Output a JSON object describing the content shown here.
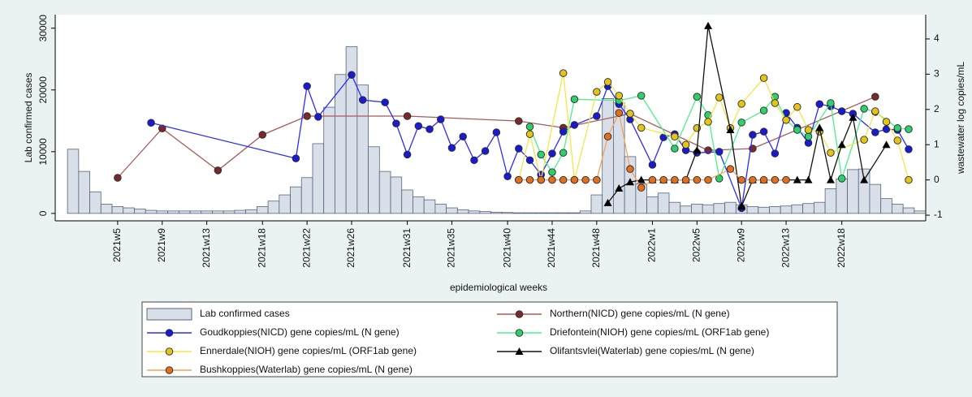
{
  "chart_data": {
    "type": "combo",
    "x_label": "epidemiological weeks",
    "y_label": "Lab confirmed cases",
    "y2_label": "wastewater log copies/mL",
    "x": [
      "2021w1",
      "2021w2",
      "2021w3",
      "2021w4",
      "2021w5",
      "2021w6",
      "2021w7",
      "2021w8",
      "2021w9",
      "2021w10",
      "2021w11",
      "2021w12",
      "2021w13",
      "2021w14",
      "2021w15",
      "2021w16",
      "2021w17",
      "2021w18",
      "2021w19",
      "2021w20",
      "2021w21",
      "2021w22",
      "2021w23",
      "2021w24",
      "2021w25",
      "2021w26",
      "2021w27",
      "2021w28",
      "2021w29",
      "2021w30",
      "2021w31",
      "2021w32",
      "2021w33",
      "2021w34",
      "2021w35",
      "2021w36",
      "2021w37",
      "2021w38",
      "2021w39",
      "2021w40",
      "2021w41",
      "2021w42",
      "2021w43",
      "2021w44",
      "2021w45",
      "2021w46",
      "2021w47",
      "2021w48",
      "2021w49",
      "2021w50",
      "2021w51",
      "2021w52",
      "2022w1",
      "2022w2",
      "2022w3",
      "2022w4",
      "2022w5",
      "2022w6",
      "2022w7",
      "2022w8",
      "2022w9",
      "2022w10",
      "2022w11",
      "2022w12",
      "2022w13",
      "2022w14",
      "2022w15",
      "2022w16",
      "2022w17",
      "2022w18",
      "2022w19",
      "2022w20",
      "2022w21",
      "2022w22",
      "2022w23",
      "2022w24",
      "2022w25"
    ],
    "xticks": [
      "2021w5",
      "2021w9",
      "2021w13",
      "2021w18",
      "2021w22",
      "2021w26",
      "2021w31",
      "2021w35",
      "2021w40",
      "2021w44",
      "2021w48",
      "2022w1",
      "2022w5",
      "2022w9",
      "2022w13",
      "2022w18"
    ],
    "ylim": [
      -1200,
      32200
    ],
    "yticks": [
      0,
      10000,
      20000,
      30000
    ],
    "y2lim": [
      -1.16,
      4.69
    ],
    "y2ticks": [
      -1,
      0,
      1,
      2,
      3,
      4
    ],
    "series": [
      {
        "name": "Lab confirmed cases",
        "type": "bar",
        "color": "#d9dfe9",
        "edge_color": "#56657d",
        "values": [
          10400,
          6800,
          3500,
          1500,
          1100,
          900,
          700,
          500,
          400,
          400,
          400,
          400,
          400,
          400,
          400,
          500,
          600,
          1100,
          2000,
          3000,
          4300,
          5800,
          11300,
          17200,
          22500,
          27000,
          20800,
          10800,
          6800,
          5900,
          3800,
          2700,
          2200,
          1500,
          900,
          600,
          400,
          300,
          200,
          150,
          100,
          100,
          100,
          100,
          100,
          100,
          400,
          3000,
          18600,
          17900,
          9200,
          4800,
          2700,
          3300,
          1800,
          1200,
          1500,
          1400,
          1600,
          1800,
          1400,
          1100,
          1000,
          1100,
          1200,
          1400,
          1600,
          1800,
          4000,
          5600,
          7100,
          7200,
          4700,
          2400,
          1500,
          900,
          400
        ]
      },
      {
        "name": "Northern(NICD) gene copies/mL (N gene)",
        "type": "line",
        "axis": "y2",
        "marker": "circle",
        "color": "#a85a5a",
        "marker_color": "#7b2a2a",
        "x": [
          "2021w5",
          "2021w9",
          "2021w14",
          "2021w18",
          "2021w22",
          "2021w31",
          "2021w41",
          "2021w45",
          "2021w51",
          "2022w6",
          "2022w10",
          "2022w21"
        ],
        "values": [
          0.06,
          1.46,
          0.27,
          1.28,
          1.81,
          1.81,
          1.67,
          1.48,
          1.88,
          0.84,
          0.89,
          2.36
        ]
      },
      {
        "name": "Goudkoppies(NICD) gene copies/mL (N gene)",
        "type": "line",
        "axis": "y2",
        "marker": "circle",
        "color": "#2b2bff",
        "marker_color": "#1a1ad0",
        "x": [
          "2021w8",
          "2021w21",
          "2021w22",
          "2021w23",
          "2021w26",
          "2021w27",
          "2021w29",
          "2021w30",
          "2021w31",
          "2021w32",
          "2021w33",
          "2021w34",
          "2021w35",
          "2021w36",
          "2021w37",
          "2021w38",
          "2021w39",
          "2021w40",
          "2021w41",
          "2021w42",
          "2021w43",
          "2021w44",
          "2021w45",
          "2021w46",
          "2021w48",
          "2021w49",
          "2021w50",
          "2021w51",
          "2022w1",
          "2022w2",
          "2022w3",
          "2022w4",
          "2022w5",
          "2022w7",
          "2022w9",
          "2022w10",
          "2022w11",
          "2022w12",
          "2022w13",
          "2022w14",
          "2022w15",
          "2022w16",
          "2022w17",
          "2022w18",
          "2022w19",
          "2022w21",
          "2022w22",
          "2022w23",
          "2022w24"
        ],
        "values": [
          1.62,
          0.61,
          2.66,
          1.79,
          2.98,
          2.27,
          2.2,
          1.6,
          0.72,
          1.53,
          1.44,
          1.72,
          0.91,
          1.23,
          0.56,
          0.82,
          1.35,
          0.1,
          0.89,
          0.56,
          0.15,
          0.75,
          1.37,
          1.56,
          1.81,
          2.66,
          2.15,
          1.72,
          0.43,
          1.21,
          1.3,
          0.84,
          0.77,
          0.8,
          -0.8,
          1.28,
          1.37,
          0.75,
          1.9,
          1.48,
          1.05,
          2.15,
          2.09,
          1.95,
          1.88,
          1.35,
          1.44,
          1.42,
          0.87
        ]
      },
      {
        "name": "Driefontein(NIOH) gene copies/mL (ORF1ab gene)",
        "type": "line",
        "axis": "y2",
        "marker": "circle",
        "color": "#4ef08a",
        "marker_color": "#2fcf6c",
        "x": [
          "2021w42",
          "2021w43",
          "2021w44",
          "2021w45",
          "2021w46",
          "2021w50",
          "2021w52",
          "2022w3",
          "2022w5",
          "2022w6",
          "2022w7",
          "2022w9",
          "2022w11",
          "2022w12",
          "2022w13",
          "2022w14",
          "2022w15",
          "2022w17",
          "2022w18",
          "2022w20",
          "2022w21",
          "2022w23",
          "2022w24"
        ],
        "values": [
          1.51,
          0.72,
          0.22,
          0.77,
          2.29,
          2.25,
          2.39,
          0.89,
          2.36,
          1.84,
          0.04,
          1.63,
          1.97,
          2.36,
          1.7,
          1.42,
          1.23,
          2.18,
          0.04,
          2.02,
          1.93,
          1.47,
          1.44
        ]
      },
      {
        "name": "Ennerdale(NIOH) gene copies/mL (ORF1ab gene)",
        "type": "line",
        "axis": "y2",
        "marker": "circle",
        "color": "#f3e64a",
        "marker_color": "#e2c41a",
        "x": [
          "2021w41",
          "2021w42",
          "2021w43",
          "2021w45",
          "2021w46",
          "2021w48",
          "2021w49",
          "2021w50",
          "2021w51",
          "2021w52",
          "2022w3",
          "2022w4",
          "2022w5",
          "2022w6",
          "2022w7",
          "2022w8",
          "2022w9",
          "2022w11",
          "2022w12",
          "2022w13",
          "2022w14",
          "2022w15",
          "2022w16",
          "2022w17",
          "2022w20",
          "2022w21",
          "2022w22",
          "2022w23",
          "2022w24"
        ],
        "values": [
          0,
          1.3,
          0,
          3.03,
          0,
          2.5,
          2.78,
          2.39,
          1.88,
          1.48,
          1.23,
          1,
          1.47,
          1.65,
          2.34,
          1.47,
          2.16,
          2.89,
          2.18,
          1.7,
          2.07,
          1.42,
          1.37,
          0.77,
          1.14,
          1.95,
          1.65,
          1.12,
          0
        ]
      },
      {
        "name": "Olifantsvlei(Waterlab) gene copies/mL (N gene)",
        "type": "line",
        "axis": "y2",
        "marker": "triangle",
        "color": "#111111",
        "marker_color": "#000000",
        "x": [
          "2021w49",
          "2021w50",
          "2021w51",
          "2021w52",
          "2022w1",
          "2022w2",
          "2022w3",
          "2022w4",
          "2022w5",
          "2022w6",
          "2022w8",
          "2022w9",
          "2022w10",
          "2022w11",
          "2022w14",
          "2022w15",
          "2022w16",
          "2022w17",
          "2022w18",
          "2022w19",
          "2022w20",
          "2022w22"
        ],
        "values": [
          -0.65,
          -0.24,
          -0.06,
          0,
          0,
          0,
          0,
          0,
          0.84,
          4.37,
          1.42,
          -0.75,
          0,
          0,
          0,
          0,
          1.48,
          0,
          1,
          1.77,
          0,
          1
        ]
      },
      {
        "name": "Bushkoppies(Waterlab) gene copies/mL (N gene)",
        "type": "line",
        "axis": "y2",
        "marker": "circle",
        "color": "#f5a25c",
        "marker_color": "#e26e1e",
        "x": [
          "2021w41",
          "2021w42",
          "2021w43",
          "2021w44",
          "2021w45",
          "2021w46",
          "2021w47",
          "2021w48",
          "2021w49",
          "2021w50",
          "2021w51",
          "2021w52",
          "2022w1",
          "2022w2",
          "2022w3",
          "2022w4",
          "2022w5",
          "2022w6",
          "2022w8",
          "2022w9",
          "2022w10",
          "2022w11",
          "2022w12",
          "2022w13"
        ],
        "values": [
          0,
          0,
          0,
          0,
          0,
          0,
          0,
          0,
          1.23,
          1.9,
          0.31,
          -0.22,
          0,
          0,
          0,
          0,
          0,
          0,
          0.31,
          0,
          0,
          0,
          0,
          0
        ]
      }
    ]
  }
}
